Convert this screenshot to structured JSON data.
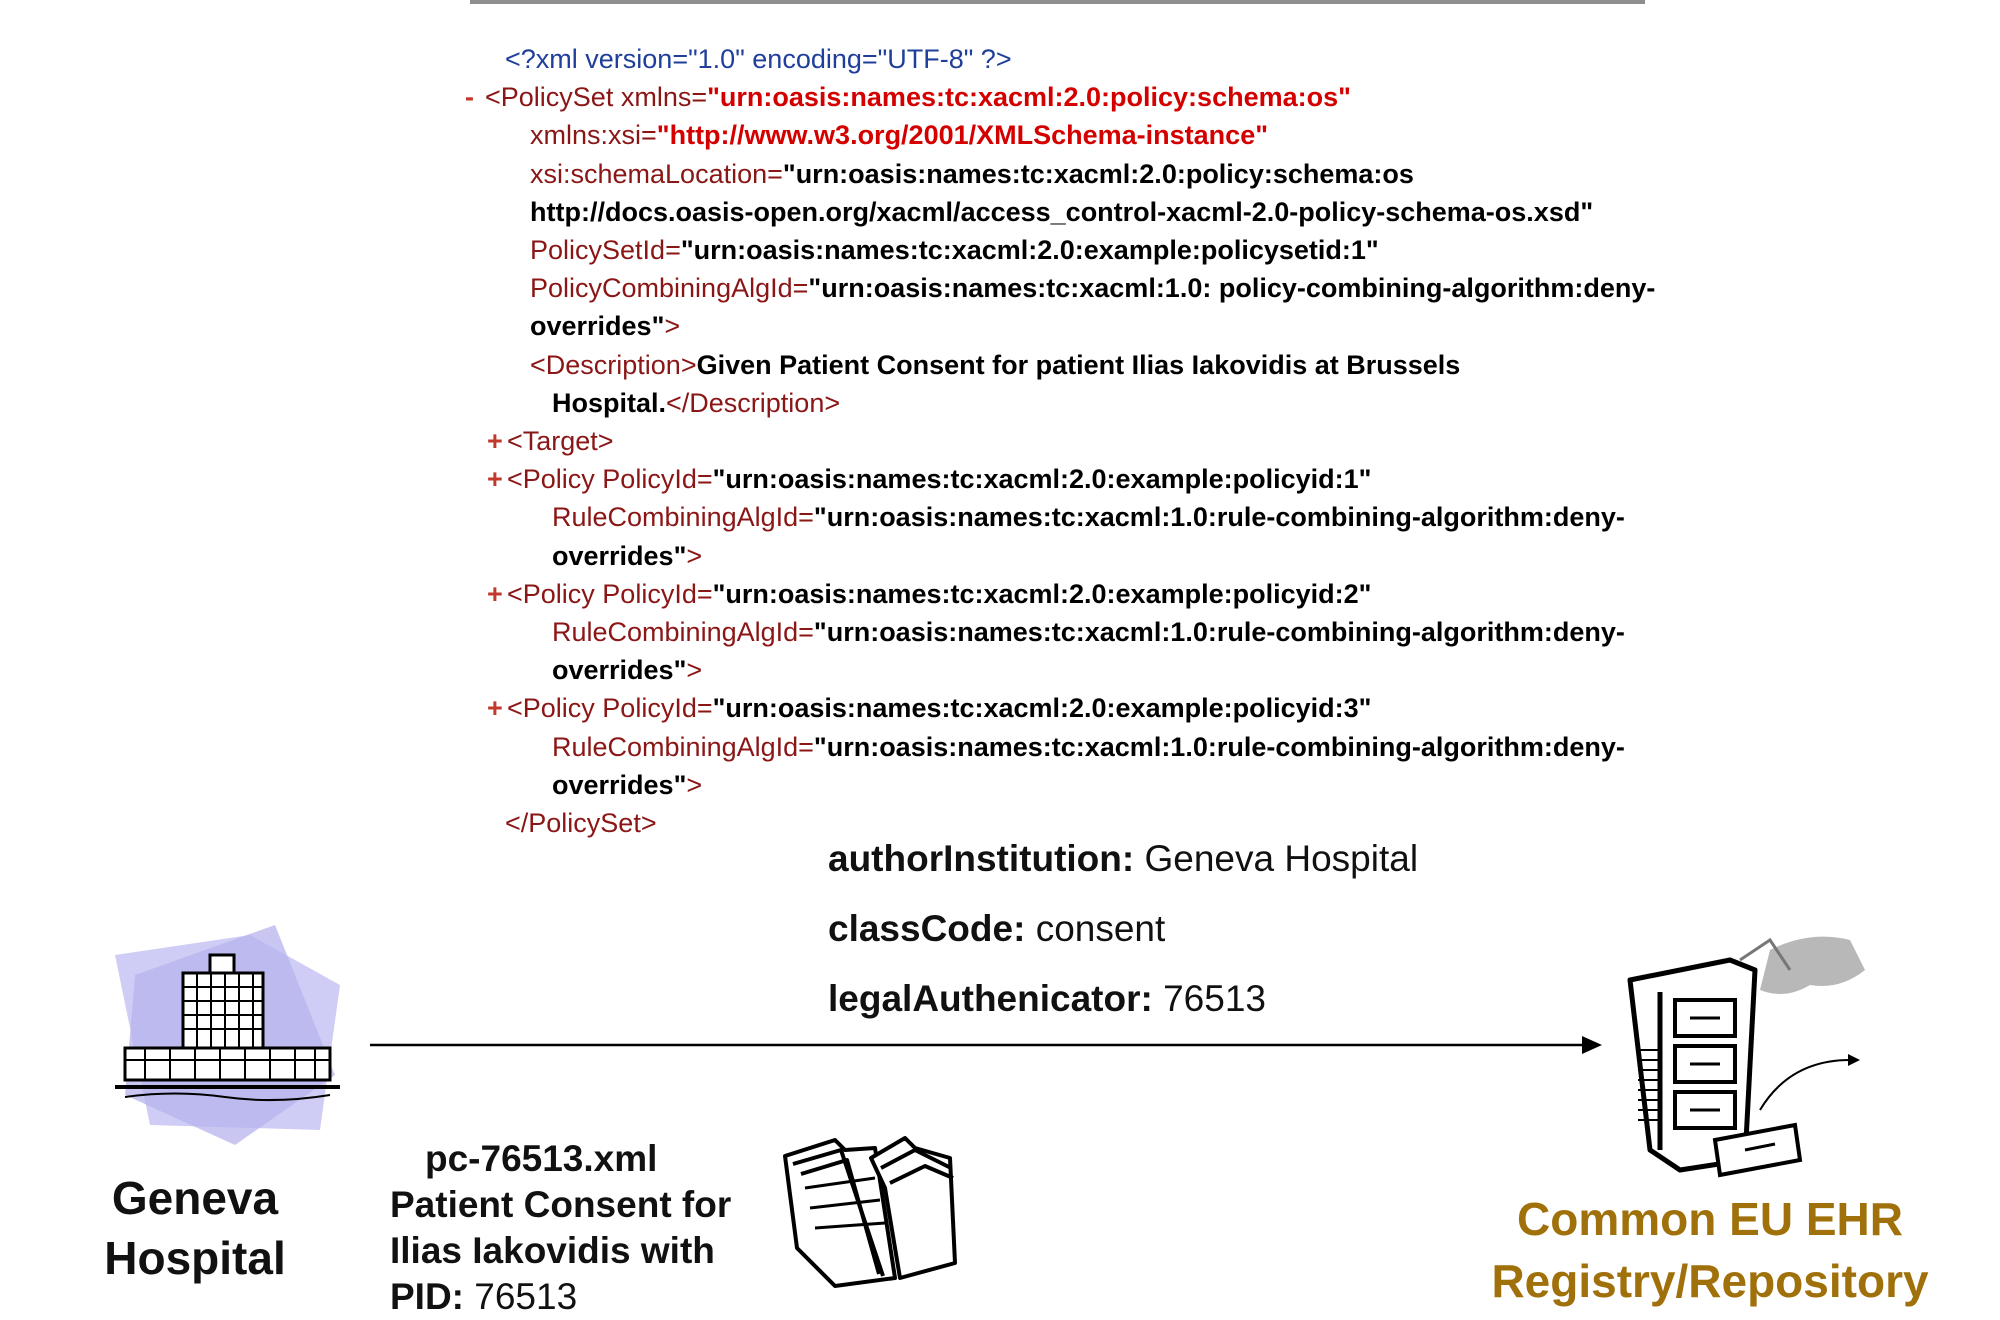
{
  "xml_lines": [
    {
      "marker": "",
      "indent": 20,
      "parts": [
        {
          "c": "pi",
          "t": "<?xml version=\"1.0\" encoding=\"UTF-8\" ?>"
        }
      ]
    },
    {
      "marker": "-",
      "indent": 0,
      "parts": [
        {
          "c": "tag",
          "t": "<PolicySet "
        },
        {
          "c": "attr",
          "t": "xmlns="
        },
        {
          "c": "val-red",
          "t": "\"urn:oasis:names:tc:xacml:2.0:policy:schema:os\""
        }
      ]
    },
    {
      "marker": "",
      "indent": 45,
      "parts": [
        {
          "c": "attr",
          "t": "xmlns:xsi="
        },
        {
          "c": "val-red",
          "t": "\"http://www.w3.org/2001/XMLSchema-instance\""
        }
      ]
    },
    {
      "marker": "",
      "indent": 45,
      "parts": [
        {
          "c": "attr",
          "t": "xsi:schemaLocation="
        },
        {
          "c": "val",
          "t": "\"urn:oasis:names:tc:xacml:2.0:policy:schema:os"
        }
      ]
    },
    {
      "marker": "",
      "indent": 45,
      "parts": [
        {
          "c": "val",
          "t": "http://docs.oasis-open.org/xacml/access_control-xacml-2.0-policy-schema-os.xsd\""
        }
      ]
    },
    {
      "marker": "",
      "indent": 45,
      "parts": [
        {
          "c": "attr",
          "t": "PolicySetId="
        },
        {
          "c": "val",
          "t": "\"urn:oasis:names:tc:xacml:2.0:example:policysetid:1\""
        }
      ]
    },
    {
      "marker": "",
      "indent": 45,
      "parts": [
        {
          "c": "attr",
          "t": "PolicyCombiningAlgId="
        },
        {
          "c": "val",
          "t": "\"urn:oasis:names:tc:xacml:1.0: policy-combining-algorithm:deny-"
        }
      ]
    },
    {
      "marker": "",
      "indent": 45,
      "parts": [
        {
          "c": "val",
          "t": "overrides\""
        },
        {
          "c": "tag",
          "t": ">"
        }
      ]
    },
    {
      "marker": "",
      "indent": 45,
      "parts": [
        {
          "c": "tag",
          "t": "<Description>"
        },
        {
          "c": "txt",
          "t": "Given Patient Consent for patient Ilias Iakovidis at Brussels"
        }
      ]
    },
    {
      "marker": "",
      "indent": 67,
      "parts": [
        {
          "c": "txt",
          "t": "Hospital."
        },
        {
          "c": "tag",
          "t": "</Description>"
        }
      ]
    },
    {
      "marker": "+",
      "indent": 22,
      "parts": [
        {
          "c": "tag",
          "t": "<Target>"
        }
      ]
    },
    {
      "marker": "+",
      "indent": 22,
      "parts": [
        {
          "c": "tag",
          "t": "<Policy "
        },
        {
          "c": "attr",
          "t": "PolicyId="
        },
        {
          "c": "val",
          "t": "\"urn:oasis:names:tc:xacml:2.0:example:policyid:1\""
        }
      ]
    },
    {
      "marker": "",
      "indent": 67,
      "parts": [
        {
          "c": "attr",
          "t": "RuleCombiningAlgId="
        },
        {
          "c": "val",
          "t": "\"urn:oasis:names:tc:xacml:1.0:rule-combining-algorithm:deny-"
        }
      ]
    },
    {
      "marker": "",
      "indent": 67,
      "parts": [
        {
          "c": "val",
          "t": "overrides\""
        },
        {
          "c": "tag",
          "t": ">"
        }
      ]
    },
    {
      "marker": "+",
      "indent": 22,
      "parts": [
        {
          "c": "tag",
          "t": "<Policy "
        },
        {
          "c": "attr",
          "t": "PolicyId="
        },
        {
          "c": "val",
          "t": "\"urn:oasis:names:tc:xacml:2.0:example:policyid:2\""
        }
      ]
    },
    {
      "marker": "",
      "indent": 67,
      "parts": [
        {
          "c": "attr",
          "t": "RuleCombiningAlgId="
        },
        {
          "c": "val",
          "t": "\"urn:oasis:names:tc:xacml:1.0:rule-combining-algorithm:deny-"
        }
      ]
    },
    {
      "marker": "",
      "indent": 67,
      "parts": [
        {
          "c": "val",
          "t": "overrides\""
        },
        {
          "c": "tag",
          "t": ">"
        }
      ]
    },
    {
      "marker": "+",
      "indent": 22,
      "parts": [
        {
          "c": "tag",
          "t": "<Policy "
        },
        {
          "c": "attr",
          "t": "PolicyId="
        },
        {
          "c": "val",
          "t": "\"urn:oasis:names:tc:xacml:2.0:example:policyid:3\""
        }
      ]
    },
    {
      "marker": "",
      "indent": 67,
      "parts": [
        {
          "c": "attr",
          "t": "RuleCombiningAlgId="
        },
        {
          "c": "val",
          "t": "\"urn:oasis:names:tc:xacml:1.0:rule-combining-algorithm:deny-"
        }
      ]
    },
    {
      "marker": "",
      "indent": 67,
      "parts": [
        {
          "c": "val",
          "t": "overrides\""
        },
        {
          "c": "tag",
          "t": ">"
        }
      ]
    },
    {
      "marker": "",
      "indent": 20,
      "parts": [
        {
          "c": "tag",
          "t": "</PolicySet>"
        }
      ]
    }
  ],
  "metadata": {
    "author_institution_key": "authorInstitution:",
    "author_institution_value": " Geneva Hospital",
    "class_code_key": "classCode:",
    "class_code_value": " consent",
    "legal_authenticator_key": "legalAuthenicator:",
    "legal_authenticator_value": " 76513"
  },
  "source": {
    "line1": "Geneva",
    "line2": "Hospital",
    "icon": "hospital-building-icon"
  },
  "document": {
    "filename": "pc-76513.xml",
    "line1": "Patient Consent for",
    "line2": "Ilias Iakovidis with",
    "pid_key": "PID:",
    "pid_value": " 76513",
    "icon": "file-folders-icon"
  },
  "destination": {
    "line1": "Common EU EHR",
    "line2": "Registry/Repository",
    "icon": "filing-cabinet-icon",
    "color": "#a0700a"
  }
}
